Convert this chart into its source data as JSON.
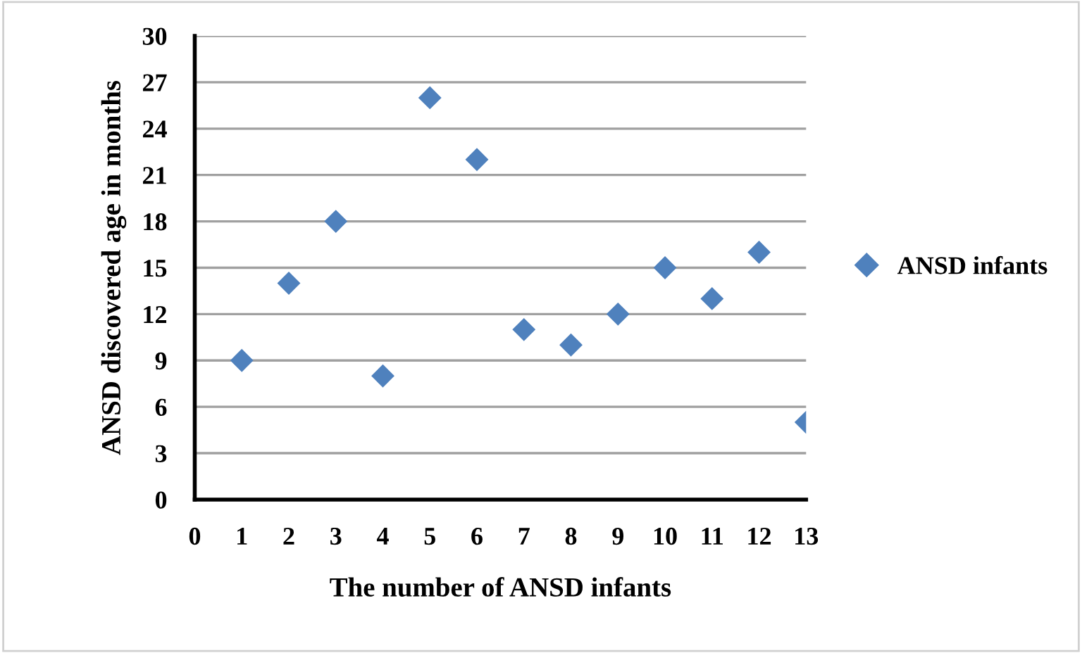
{
  "chart_data": {
    "type": "scatter",
    "xlabel": "The number of ANSD infants",
    "ylabel": "ANSD discovered age in months",
    "x": [
      1,
      2,
      3,
      4,
      5,
      6,
      7,
      8,
      9,
      10,
      11,
      12,
      13
    ],
    "series": [
      {
        "name": "ANSD infants",
        "color": "#4f81bd",
        "values": [
          9,
          14,
          18,
          8,
          26,
          22,
          11,
          10,
          12,
          15,
          13,
          16,
          5
        ]
      }
    ],
    "xlim": [
      0,
      13
    ],
    "xticks": [
      0,
      1,
      2,
      3,
      4,
      5,
      6,
      7,
      8,
      9,
      10,
      11,
      12,
      13
    ],
    "ylim": [
      0,
      30
    ],
    "yticks": [
      0,
      3,
      6,
      9,
      12,
      15,
      18,
      21,
      24,
      27,
      30
    ],
    "grid": "y",
    "legend": "right",
    "marker": "diamond"
  }
}
